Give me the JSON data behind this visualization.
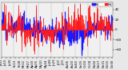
{
  "n_points": 365,
  "seed": 42,
  "ylim": [
    -55,
    55
  ],
  "ytick_vals": [
    40,
    20,
    0,
    -20,
    -40
  ],
  "n_vgrid": 8,
  "blue_color": "#1a1aff",
  "red_color": "#ff1a1a",
  "bg_color": "#e8e8e8",
  "plot_bg": "#f0f0f0",
  "grid_color": "#888888",
  "tick_fontsize": 2.8,
  "legend_fontsize": 2.8,
  "legend_blue_label": "Bl",
  "legend_red_label": "Rd",
  "blue_lw": 0.9,
  "red_lw": 0.6
}
